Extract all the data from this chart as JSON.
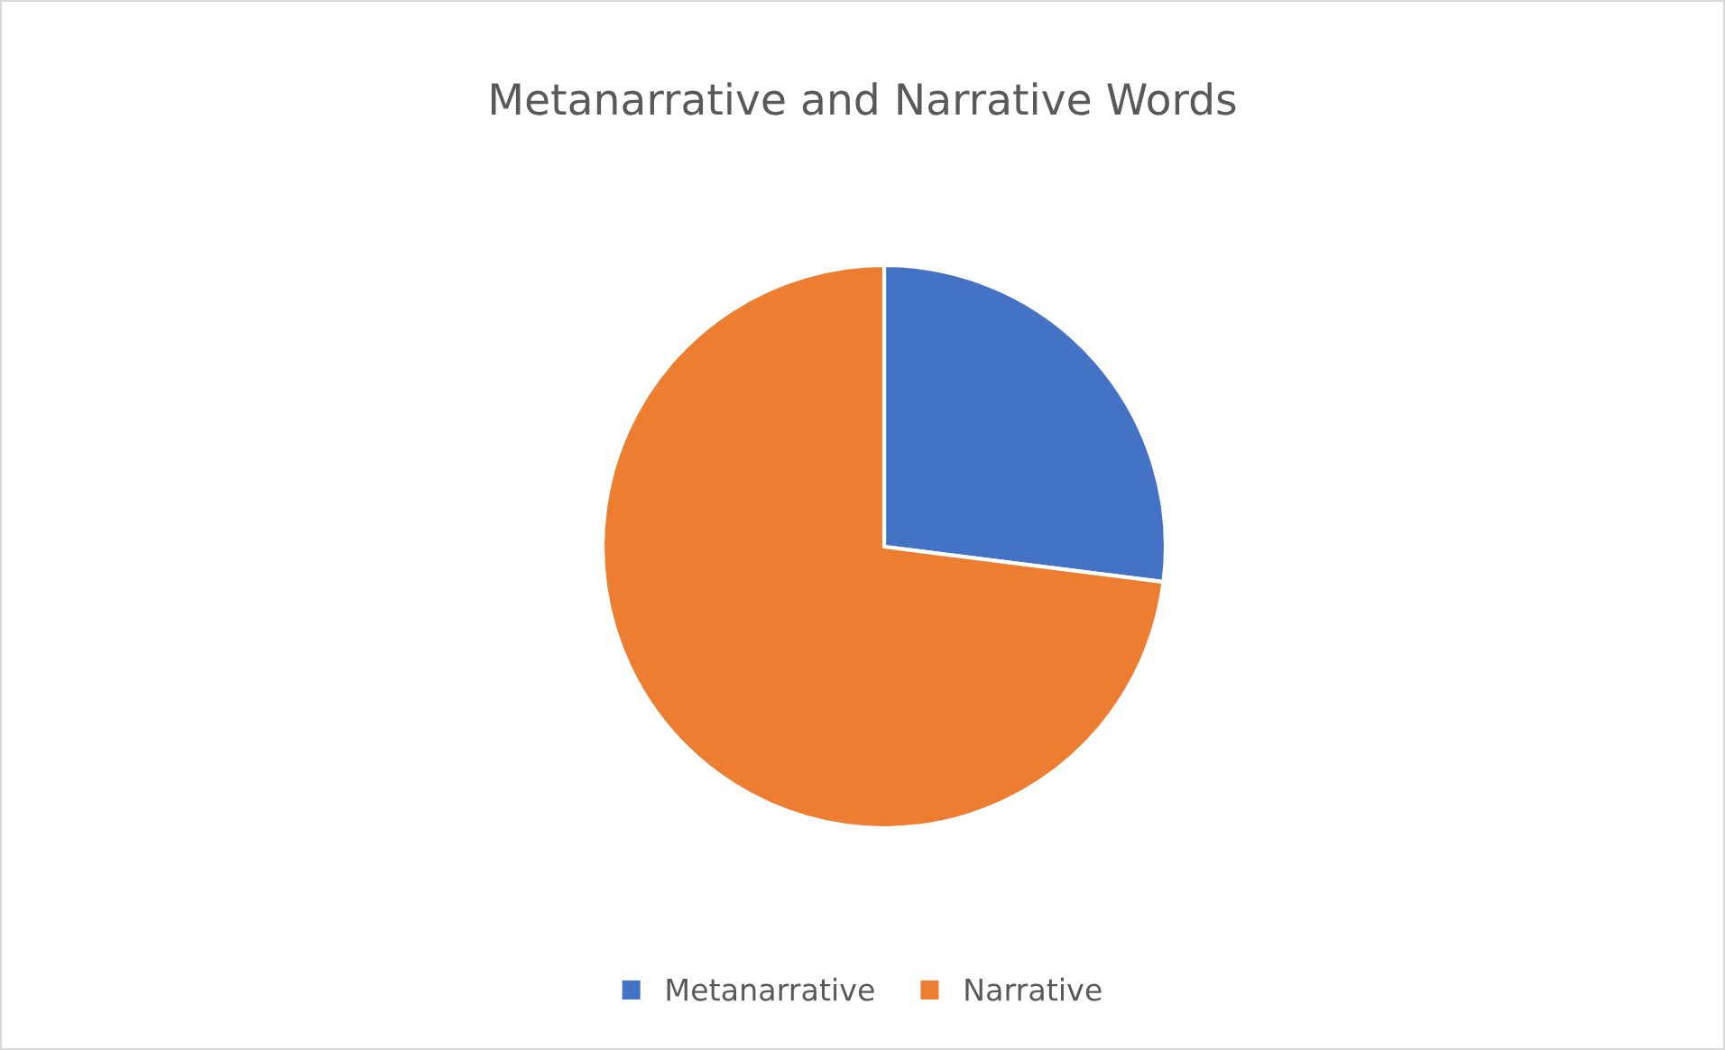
{
  "chart_data": {
    "type": "pie",
    "title": "Metanarrative and Narrative Words",
    "categories": [
      "Metanarrative",
      "Narrative"
    ],
    "values": [
      27,
      73
    ],
    "colors": [
      "#4472c4",
      "#ed7d31"
    ],
    "legend": "bottom"
  }
}
